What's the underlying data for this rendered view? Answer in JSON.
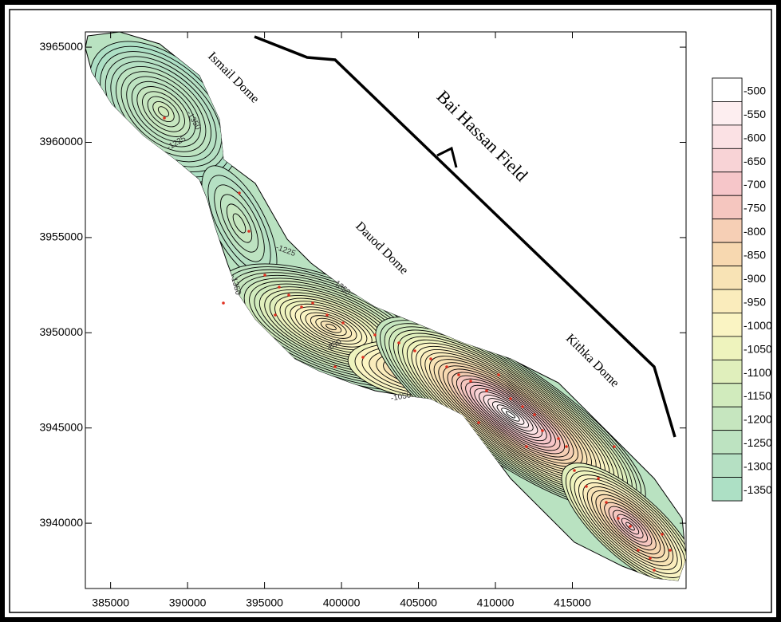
{
  "map": {
    "x_axis": {
      "lim": [
        383360,
        422385
      ],
      "ticks": [
        385000,
        390000,
        395000,
        400000,
        405000,
        410000,
        415000
      ]
    },
    "y_axis": {
      "lim": [
        3936570,
        3965800
      ],
      "ticks": [
        3940000,
        3945000,
        3950000,
        3955000,
        3960000,
        3965000
      ]
    },
    "labels": {
      "ismail": "Ismail Dome",
      "field": "Bai Hassan Field",
      "dauod": "Dauod Dome",
      "kithka": "Kithka Dome"
    },
    "contour_labels": [
      -1350,
      -1225,
      -1225,
      -1350,
      -1350,
      -850,
      -1050
    ],
    "legend": {
      "levels": [
        -500,
        -550,
        -600,
        -650,
        -700,
        -750,
        -800,
        -850,
        -900,
        -950,
        -1000,
        -1050,
        -1100,
        -1150,
        -1200,
        -1250,
        -1300,
        -1350
      ],
      "colors": [
        "#ffffff",
        "#fdeef0",
        "#fbe1e4",
        "#f8d3d6",
        "#f6c6c9",
        "#f5c6bf",
        "#f6cfb5",
        "#f7d8b0",
        "#f8e3b5",
        "#faecbc",
        "#faf4c3",
        "#eef3bd",
        "#e0efbc",
        "#d1ebbd",
        "#c6e6bf",
        "#bde3c1",
        "#b5e0c3",
        "#ade0c5"
      ]
    }
  }
}
